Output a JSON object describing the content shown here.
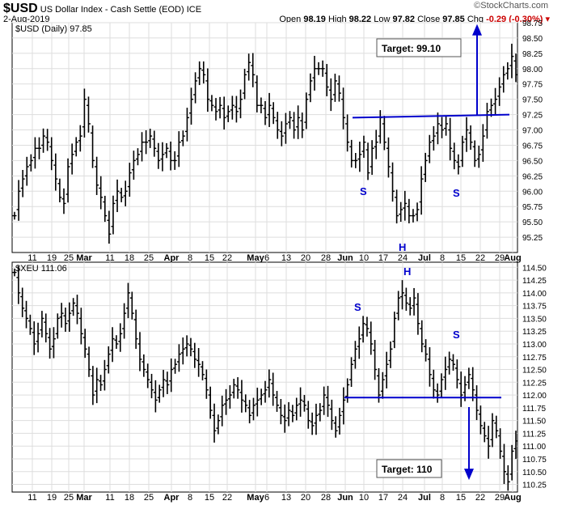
{
  "header": {
    "symbol": "$USD",
    "name": "US Dollar Index - Cash Settle (EOD)",
    "exchange": "ICE",
    "date": "2-Aug-2019",
    "brand": "©StockCharts.com",
    "open_label": "Open",
    "open": "98.19",
    "high_label": "High",
    "high": "98.22",
    "low_label": "Low",
    "low": "97.82",
    "close_label": "Close",
    "close": "97.85",
    "chg_label": "Chg",
    "chg": "-0.29 (-0.30%)",
    "chg_color": "#cc0000"
  },
  "chart_data": [
    {
      "type": "ohlc",
      "legend": "$USD (Daily) 97.85",
      "ylim": [
        95.0,
        98.75
      ],
      "yticks": [
        95.25,
        95.5,
        95.75,
        96.0,
        96.25,
        96.5,
        96.75,
        97.0,
        97.25,
        97.5,
        97.75,
        98.0,
        98.25,
        98.5,
        98.75
      ],
      "x_tick_labels": [
        "11",
        "19",
        "25",
        "Mar",
        "11",
        "18",
        "25",
        "Apr",
        "8",
        "15",
        "22",
        "May",
        "6",
        "13",
        "20",
        "28",
        "Jun",
        "10",
        "17",
        "24",
        "Jul",
        "8",
        "15",
        "22",
        "29",
        "Aug"
      ],
      "close_series": [
        95.6,
        96.0,
        96.2,
        96.4,
        96.5,
        96.7,
        96.7,
        96.9,
        96.8,
        96.5,
        96.2,
        95.9,
        95.8,
        96.4,
        96.6,
        96.8,
        96.9,
        97.5,
        97.1,
        96.5,
        96.1,
        95.9,
        95.6,
        95.3,
        95.8,
        96.0,
        95.9,
        96.0,
        96.3,
        96.5,
        96.6,
        96.8,
        96.8,
        96.9,
        96.7,
        96.5,
        96.6,
        96.7,
        96.5,
        96.5,
        96.8,
        96.9,
        97.2,
        97.5,
        97.8,
        98.0,
        97.9,
        97.5,
        97.4,
        97.3,
        97.4,
        97.2,
        97.3,
        97.4,
        97.3,
        97.5,
        97.9,
        98.1,
        97.9,
        97.4,
        97.4,
        97.2,
        97.4,
        97.2,
        97.0,
        96.9,
        97.1,
        97.2,
        97.0,
        97.2,
        97.0,
        97.5,
        97.8,
        98.0,
        98.0,
        98.0,
        97.7,
        97.5,
        97.8,
        97.6,
        97.2,
        96.8,
        96.5,
        96.5,
        96.6,
        96.8,
        96.3,
        96.7,
        96.8,
        97.2,
        96.8,
        96.4,
        96.0,
        95.6,
        95.7,
        95.8,
        95.6,
        95.6,
        95.7,
        96.2,
        96.5,
        96.8,
        96.9,
        97.1,
        97.0,
        97.1,
        96.7,
        96.5,
        96.4,
        96.8,
        97.0,
        96.8,
        96.5,
        96.6,
        96.9,
        97.3,
        97.4,
        97.5,
        97.7,
        97.9,
        98.0,
        98.2,
        97.9
      ],
      "annotations": [
        {
          "text": "Target: 99.10",
          "kind": "box"
        },
        {
          "text": "S"
        },
        {
          "text": "S"
        },
        {
          "text": "H"
        }
      ],
      "neckline": [
        97.2,
        97.25
      ],
      "target_arrow_to": 98.7,
      "annotation_color": "#0000cc"
    },
    {
      "type": "ohlc",
      "legend": "$XEU 111.06",
      "ylim": [
        110.1,
        114.6
      ],
      "yticks": [
        110.25,
        110.5,
        110.75,
        111.0,
        111.25,
        111.5,
        111.75,
        112.0,
        112.25,
        112.5,
        112.75,
        113.0,
        113.25,
        113.5,
        113.75,
        114.0,
        114.25,
        114.5
      ],
      "x_tick_labels": [
        "11",
        "19",
        "25",
        "Mar",
        "11",
        "18",
        "25",
        "Apr",
        "8",
        "15",
        "22",
        "May",
        "6",
        "13",
        "20",
        "28",
        "Jun",
        "10",
        "17",
        "24",
        "Jul",
        "8",
        "15",
        "22",
        "29",
        "Aug"
      ],
      "close_series": [
        114.4,
        114.0,
        113.7,
        113.5,
        113.3,
        113.0,
        113.2,
        113.5,
        113.2,
        112.9,
        113.1,
        113.5,
        113.6,
        113.4,
        113.6,
        113.8,
        113.6,
        113.2,
        112.9,
        112.5,
        112.0,
        112.3,
        112.2,
        112.5,
        112.8,
        113.1,
        113.0,
        113.2,
        113.6,
        114.0,
        113.6,
        113.1,
        112.7,
        112.5,
        112.3,
        112.1,
        111.9,
        112.1,
        112.3,
        112.2,
        112.5,
        112.6,
        112.8,
        112.9,
        113.0,
        112.9,
        112.7,
        112.6,
        112.4,
        112.1,
        111.7,
        111.3,
        111.5,
        111.8,
        111.9,
        112.0,
        112.2,
        112.1,
        111.9,
        111.8,
        111.6,
        111.8,
        111.9,
        112.0,
        112.1,
        112.3,
        112.0,
        111.8,
        111.6,
        111.5,
        111.7,
        111.6,
        111.8,
        111.9,
        111.8,
        111.5,
        111.4,
        111.6,
        111.7,
        112.0,
        111.8,
        111.5,
        111.3,
        111.6,
        111.9,
        112.2,
        112.6,
        112.9,
        113.1,
        113.4,
        113.3,
        113.0,
        112.5,
        112.0,
        112.3,
        112.6,
        112.9,
        113.5,
        113.9,
        114.0,
        113.8,
        113.7,
        113.9,
        113.4,
        113.0,
        112.8,
        112.4,
        112.1,
        112.0,
        112.3,
        112.5,
        112.7,
        112.6,
        112.3,
        112.0,
        112.2,
        112.4,
        112.1,
        111.7,
        111.4,
        111.2,
        111.0,
        111.5,
        111.3,
        110.9,
        110.5,
        110.3,
        110.9,
        111.1
      ],
      "annotations": [
        {
          "text": "Target: 110",
          "kind": "box"
        },
        {
          "text": "S"
        },
        {
          "text": "S"
        },
        {
          "text": "H"
        }
      ],
      "neckline": [
        111.95,
        111.95
      ],
      "target_arrow_to": 110.4,
      "annotation_color": "#0000cc"
    }
  ]
}
